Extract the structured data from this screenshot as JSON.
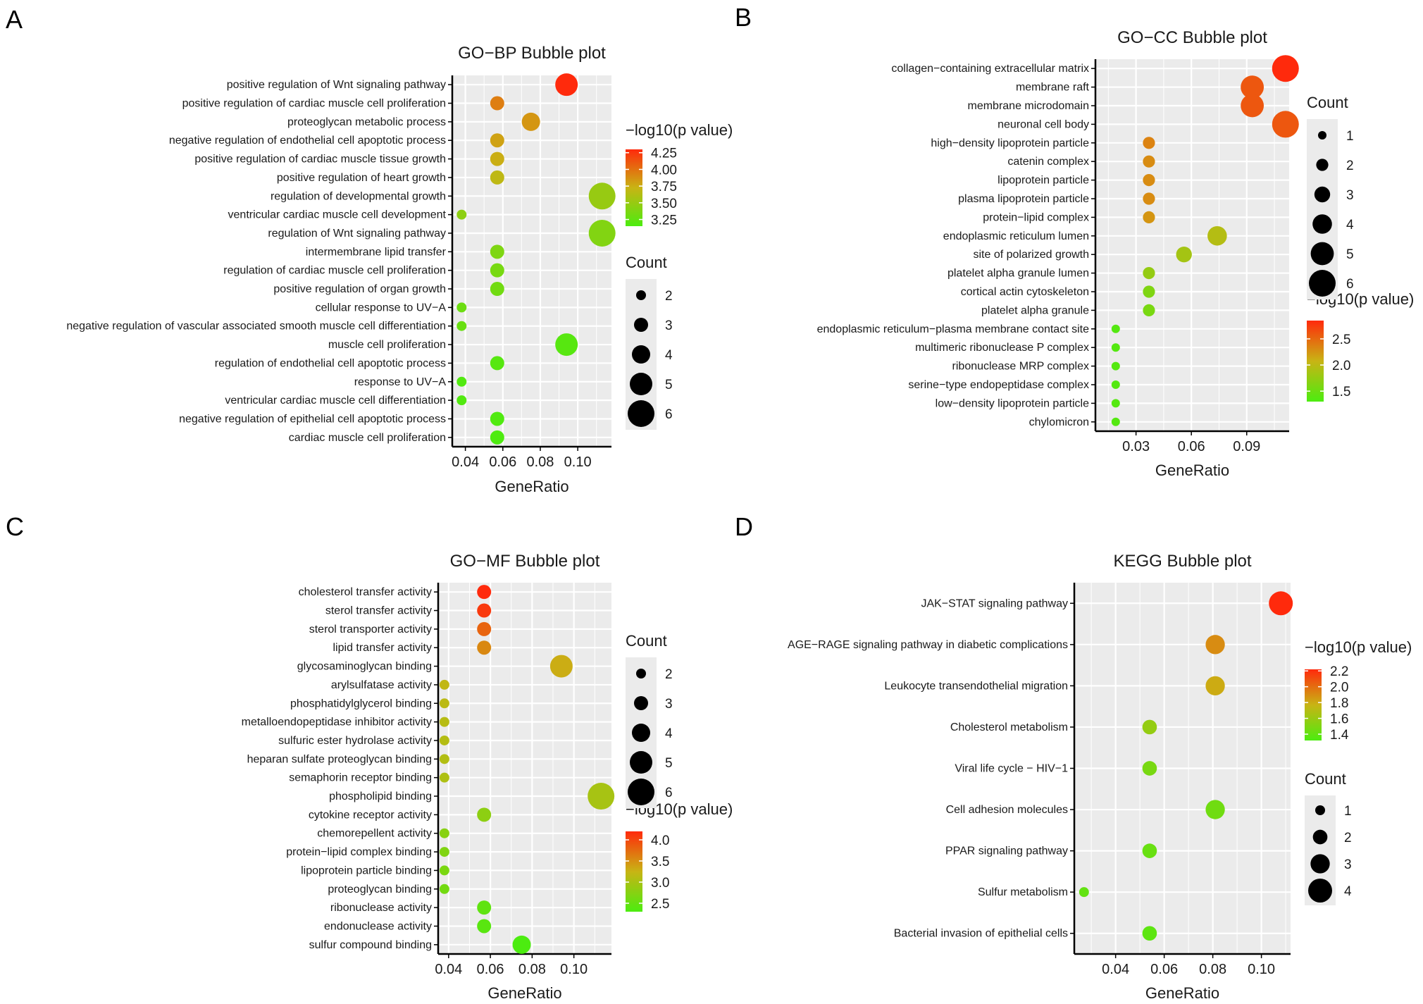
{
  "chart_data": [
    {
      "panel": "A",
      "type": "scatter",
      "title": "GO−BP Bubble plot",
      "xlabel": "GeneRatio",
      "ylabel": "",
      "xlim": [
        0.033,
        0.118
      ],
      "xticks": [
        0.04,
        0.06,
        0.08,
        0.1
      ],
      "xtick_labels": [
        "0.04",
        "0.06",
        "0.08",
        "0.10"
      ],
      "grid": true,
      "legend_order": [
        "color",
        "size"
      ],
      "color_legend": {
        "title": "−log10(p value)",
        "range": [
          3.15,
          4.3
        ],
        "ticks": [
          4.25,
          4.0,
          3.75,
          3.5,
          3.25
        ],
        "tick_labels": [
          "4.25",
          "4.00",
          "3.75",
          "3.50",
          "3.25"
        ],
        "low_color": "#4cec10",
        "mid_color": "#c8b414",
        "high_color": "#ff2a0c"
      },
      "size_legend": {
        "title": "Count",
        "values": [
          2,
          3,
          4,
          5,
          6
        ],
        "labels": [
          "2",
          "3",
          "4",
          "5",
          "6"
        ]
      },
      "terms": [
        "positive regulation of Wnt signaling pathway",
        "positive regulation of cardiac muscle cell proliferation",
        "proteoglycan metabolic process",
        "negative regulation of endothelial cell apoptotic process",
        "positive regulation of cardiac muscle tissue growth",
        "positive regulation of heart growth",
        "regulation of developmental growth",
        "ventricular cardiac muscle cell development",
        "regulation of Wnt signaling pathway",
        "intermembrane lipid transfer",
        "regulation of cardiac muscle cell proliferation",
        "positive regulation of organ growth",
        "cellular response to UV−A",
        "negative regulation of vascular associated smooth muscle cell differentiation",
        "muscle cell proliferation",
        "regulation of endothelial cell apoptotic process",
        "response to UV−A",
        "ventricular cardiac muscle cell differentiation",
        "negative regulation of epithelial cell apoptotic process",
        "cardiac muscle cell proliferation"
      ],
      "gene_ratio": [
        0.094,
        0.057,
        0.075,
        0.057,
        0.057,
        0.057,
        0.113,
        0.038,
        0.113,
        0.057,
        0.057,
        0.057,
        0.038,
        0.038,
        0.094,
        0.057,
        0.038,
        0.038,
        0.057,
        0.057
      ],
      "count": [
        5,
        3,
        4,
        3,
        3,
        3,
        6,
        2,
        6,
        3,
        3,
        3,
        2,
        2,
        5,
        3,
        2,
        2,
        3,
        3
      ],
      "neg_log10_p": [
        4.3,
        3.95,
        3.85,
        3.8,
        3.75,
        3.68,
        3.5,
        3.45,
        3.4,
        3.38,
        3.35,
        3.32,
        3.3,
        3.28,
        3.2,
        3.2,
        3.18,
        3.18,
        3.17,
        3.16
      ]
    },
    {
      "panel": "B",
      "type": "scatter",
      "title": "GO−CC Bubble plot",
      "xlabel": "GeneRatio",
      "ylabel": "",
      "xlim": [
        0.008,
        0.113
      ],
      "xticks": [
        0.03,
        0.06,
        0.09
      ],
      "xtick_labels": [
        "0.03",
        "0.06",
        "0.09"
      ],
      "grid": true,
      "legend_order": [
        "size",
        "color"
      ],
      "color_legend": {
        "title": "−log10(p value)",
        "range": [
          1.3,
          2.85
        ],
        "ticks": [
          2.5,
          2.0,
          1.5
        ],
        "tick_labels": [
          "2.5",
          "2.0",
          "1.5"
        ],
        "low_color": "#4cec10",
        "mid_color": "#c8b414",
        "high_color": "#ff2a0c"
      },
      "size_legend": {
        "title": "Count",
        "values": [
          1,
          2,
          3,
          4,
          5,
          6
        ],
        "labels": [
          "1",
          "2",
          "3",
          "4",
          "5",
          "6"
        ]
      },
      "terms": [
        "collagen−containing extracellular matrix",
        "membrane raft",
        "membrane microdomain",
        "neuronal cell body",
        "high−density lipoprotein particle",
        "catenin complex",
        "lipoprotein particle",
        "plasma lipoprotein particle",
        "protein−lipid complex",
        "endoplasmic reticulum lumen",
        "site of polarized growth",
        "platelet alpha granule lumen",
        "cortical actin cytoskeleton",
        "platelet alpha granule",
        "endoplasmic reticulum−plasma membrane contact site",
        "multimeric ribonuclease P complex",
        "ribonuclease MRP complex",
        "serine−type endopeptidase complex",
        "low−density lipoprotein particle",
        "chylomicron"
      ],
      "gene_ratio": [
        0.111,
        0.093,
        0.093,
        0.111,
        0.037,
        0.037,
        0.037,
        0.037,
        0.037,
        0.074,
        0.056,
        0.037,
        0.037,
        0.037,
        0.019,
        0.019,
        0.019,
        0.019,
        0.019,
        0.019
      ],
      "count": [
        6,
        5,
        5,
        6,
        2,
        2,
        2,
        2,
        2,
        4,
        3,
        2,
        2,
        2,
        1,
        1,
        1,
        1,
        1,
        1
      ],
      "neg_log10_p": [
        2.85,
        2.6,
        2.6,
        2.6,
        2.35,
        2.3,
        2.3,
        2.3,
        2.25,
        1.95,
        1.85,
        1.75,
        1.62,
        1.58,
        1.35,
        1.35,
        1.35,
        1.35,
        1.35,
        1.35
      ]
    },
    {
      "panel": "C",
      "type": "scatter",
      "title": "GO−MF Bubble plot",
      "xlabel": "GeneRatio",
      "ylabel": "",
      "xlim": [
        0.035,
        0.118
      ],
      "xticks": [
        0.04,
        0.06,
        0.08,
        0.1
      ],
      "xtick_labels": [
        "0.04",
        "0.06",
        "0.08",
        "0.10"
      ],
      "grid": true,
      "legend_order": [
        "size",
        "color"
      ],
      "color_legend": {
        "title": "−log10(p value)",
        "range": [
          2.3,
          4.2
        ],
        "ticks": [
          4.0,
          3.5,
          3.0,
          2.5
        ],
        "tick_labels": [
          "4.0",
          "3.5",
          "3.0",
          "2.5"
        ],
        "low_color": "#4cec10",
        "mid_color": "#c8b414",
        "high_color": "#ff2a0c"
      },
      "size_legend": {
        "title": "Count",
        "values": [
          2,
          3,
          4,
          5,
          6
        ],
        "labels": [
          "2",
          "3",
          "4",
          "5",
          "6"
        ]
      },
      "terms": [
        "cholesterol transfer activity",
        "sterol transfer activity",
        "sterol transporter activity",
        "lipid transfer activity",
        "glycosaminoglycan binding",
        "arylsulfatase activity",
        "phosphatidylglycerol binding",
        "metalloendopeptidase inhibitor activity",
        "sulfuric ester hydrolase activity",
        "heparan sulfate proteoglycan binding",
        "semaphorin receptor binding",
        "phospholipid binding",
        "cytokine receptor activity",
        "chemorepellent activity",
        "protein−lipid complex binding",
        "lipoprotein particle binding",
        "proteoglycan binding",
        "ribonuclease activity",
        "endonuclease activity",
        "sulfur compound binding"
      ],
      "gene_ratio": [
        0.057,
        0.057,
        0.057,
        0.057,
        0.094,
        0.038,
        0.038,
        0.038,
        0.038,
        0.038,
        0.038,
        0.113,
        0.057,
        0.038,
        0.038,
        0.038,
        0.038,
        0.057,
        0.057,
        0.075
      ],
      "count": [
        3,
        3,
        3,
        3,
        5,
        2,
        2,
        2,
        2,
        2,
        2,
        6,
        3,
        2,
        2,
        2,
        2,
        3,
        3,
        4
      ],
      "neg_log10_p": [
        4.2,
        4.1,
        3.8,
        3.55,
        3.3,
        3.2,
        3.15,
        3.12,
        3.1,
        3.08,
        3.05,
        3.0,
        2.8,
        2.75,
        2.7,
        2.65,
        2.6,
        2.45,
        2.4,
        2.3
      ]
    },
    {
      "panel": "D",
      "type": "scatter",
      "title": "KEGG Bubble plot",
      "xlabel": "GeneRatio",
      "ylabel": "",
      "xlim": [
        0.023,
        0.112
      ],
      "xticks": [
        0.04,
        0.06,
        0.08,
        0.1
      ],
      "xtick_labels": [
        "0.04",
        "0.06",
        "0.08",
        "0.10"
      ],
      "grid": true,
      "legend_order": [
        "color",
        "size"
      ],
      "color_legend": {
        "title": "−log10(p value)",
        "range": [
          1.32,
          2.22
        ],
        "ticks": [
          2.2,
          2.0,
          1.8,
          1.6,
          1.4
        ],
        "tick_labels": [
          "2.2",
          "2.0",
          "1.8",
          "1.6",
          "1.4"
        ],
        "low_color": "#4cec10",
        "mid_color": "#c8b414",
        "high_color": "#ff2a0c"
      },
      "size_legend": {
        "title": "Count",
        "values": [
          1,
          2,
          3,
          4
        ],
        "labels": [
          "1",
          "2",
          "3",
          "4"
        ]
      },
      "terms": [
        "JAK−STAT signaling pathway",
        "AGE−RAGE signaling pathway in diabetic complications",
        "Leukocyte transendothelial migration",
        "Cholesterol metabolism",
        "Viral life cycle − HIV−1",
        "Cell adhesion molecules",
        "PPAR signaling pathway",
        "Sulfur metabolism",
        "Bacterial invasion of epithelial cells"
      ],
      "gene_ratio": [
        0.108,
        0.081,
        0.081,
        0.054,
        0.054,
        0.081,
        0.054,
        0.027,
        0.054
      ],
      "count": [
        4,
        3,
        3,
        2,
        2,
        3,
        2,
        1,
        2
      ],
      "neg_log10_p": [
        2.25,
        1.9,
        1.8,
        1.58,
        1.48,
        1.45,
        1.42,
        1.4,
        1.38
      ]
    }
  ]
}
